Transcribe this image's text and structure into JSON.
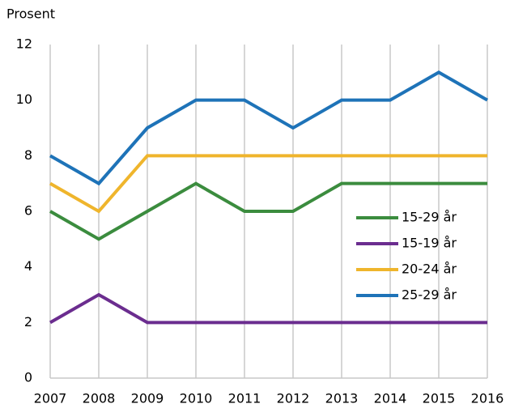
{
  "chart_data": {
    "type": "line",
    "y_label": "Prosent",
    "categories": [
      "2007",
      "2008",
      "2009",
      "2010",
      "2011",
      "2012",
      "2013",
      "2014",
      "2015",
      "2016"
    ],
    "series": [
      {
        "name": "15-29 år",
        "color": "#3b8c3e",
        "values": [
          6,
          5,
          6,
          7,
          6,
          6,
          7,
          7,
          7,
          7
        ]
      },
      {
        "name": "15-19 år",
        "color": "#6b2d8f",
        "values": [
          2,
          3,
          2,
          2,
          2,
          2,
          2,
          2,
          2,
          2
        ]
      },
      {
        "name": "20-24 år",
        "color": "#efb52c",
        "values": [
          7,
          6,
          8,
          8,
          8,
          8,
          8,
          8,
          8,
          8
        ]
      },
      {
        "name": "25-29 år",
        "color": "#1e73b8",
        "values": [
          8,
          7,
          9,
          10,
          10,
          9,
          10,
          10,
          11,
          10
        ]
      }
    ],
    "ylim": [
      0,
      12
    ],
    "yticks": [
      0,
      2,
      4,
      6,
      8,
      10,
      12
    ],
    "grid": "x",
    "legend": "lower right"
  }
}
